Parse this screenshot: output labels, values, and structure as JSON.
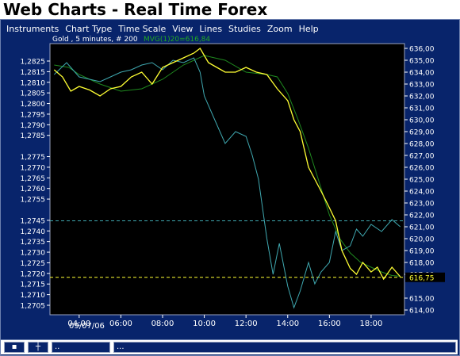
{
  "app": {
    "title": "Web Charts - Real Time Forex"
  },
  "menu": {
    "items": [
      "Instruments",
      "Chart Type",
      "Time Scale",
      "View",
      "Lines",
      "Studies",
      "Zoom",
      "Help"
    ]
  },
  "legend": {
    "instrument_text": "Gold , 5 minutes, # 200",
    "mvg_text": "MVG(1)20=616,84"
  },
  "statusbar": {
    "field1": "..",
    "field2": "..."
  },
  "chart_data": {
    "type": "line",
    "x_tick_labels": [
      "04:00",
      "06:00",
      "08:00",
      "10:00",
      "12:00",
      "14:00",
      "16:00",
      "18:00"
    ],
    "x_date_label": "09/07/06",
    "left_axis_ticks": [
      "1,2825",
      "1,2815",
      "1,2810",
      "1,2805",
      "1,2800",
      "1,2795",
      "1,2790",
      "1,2785",
      "1,2775",
      "1,2770",
      "1,2765",
      "1,2760",
      "1,2755",
      "1,2745",
      "1,2740",
      "1,2735",
      "1,2730",
      "1,2725",
      "1,2720",
      "1,2715",
      "1,2710",
      "1,2705"
    ],
    "right_axis_ticks": [
      "636,00",
      "635,00",
      "634,00",
      "633,00",
      "632,00",
      "631,00",
      "630,00",
      "629,00",
      "628,00",
      "627,00",
      "626,00",
      "625,00",
      "624,00",
      "623,00",
      "622,00",
      "621,00",
      "620,00",
      "619,00",
      "618,00",
      "617,00",
      "615,00",
      "614,00"
    ],
    "right_axis_range": [
      613.6,
      636.4
    ],
    "current_price_label": "616,75",
    "current_price": 616.75,
    "reference_line": 621.5,
    "x_range_hours": [
      2.6,
      19.6
    ],
    "series": [
      {
        "name": "Gold",
        "color": "#ffff33",
        "x": [
          2.8,
          3.2,
          3.6,
          4.0,
          4.5,
          5.0,
          5.5,
          6.0,
          6.5,
          7.0,
          7.5,
          8.0,
          8.5,
          9.0,
          9.5,
          9.8,
          10.2,
          10.6,
          11.0,
          11.5,
          12.0,
          12.5,
          13.0,
          13.5,
          14.0,
          14.3,
          14.6,
          15.0,
          15.3,
          15.6,
          16.0,
          16.3,
          16.6,
          17.0,
          17.3,
          17.6,
          18.0,
          18.3,
          18.6,
          19.0,
          19.4
        ],
        "y": [
          634.2,
          633.6,
          632.4,
          632.8,
          632.5,
          632.0,
          632.6,
          632.8,
          633.6,
          634.0,
          633.0,
          634.4,
          634.8,
          635.2,
          635.6,
          636.0,
          634.8,
          634.4,
          634.0,
          634.0,
          634.4,
          634.0,
          633.8,
          632.6,
          631.6,
          630.0,
          629.0,
          626.0,
          625.0,
          624.0,
          622.6,
          621.5,
          619.0,
          617.5,
          617.0,
          618.0,
          617.2,
          617.6,
          616.6,
          617.6,
          616.8
        ]
      },
      {
        "name": "",
        "color": "#3fa8b0",
        "x": [
          2.8,
          3.4,
          4.0,
          4.5,
          5.0,
          5.5,
          6.0,
          6.5,
          7.0,
          7.5,
          8.0,
          8.5,
          9.0,
          9.5,
          9.8,
          10.0,
          10.5,
          11.0,
          11.5,
          12.0,
          12.3,
          12.6,
          13.0,
          13.3,
          13.6,
          14.0,
          14.3,
          14.6,
          15.0,
          15.3,
          15.6,
          16.0,
          16.3,
          16.6,
          17.0,
          17.3,
          17.6,
          18.0,
          18.5,
          19.0,
          19.4
        ],
        "y": [
          633.8,
          634.8,
          633.6,
          633.4,
          633.2,
          633.6,
          634.0,
          634.2,
          634.6,
          634.8,
          634.2,
          635.0,
          634.8,
          635.2,
          634.0,
          632.0,
          630.0,
          628.0,
          629.0,
          628.6,
          627.0,
          625.0,
          620.0,
          617.0,
          619.6,
          616.0,
          614.2,
          615.6,
          618.0,
          616.2,
          617.2,
          618.0,
          620.6,
          619.0,
          619.4,
          620.8,
          620.2,
          621.2,
          620.6,
          621.6,
          621.0
        ]
      },
      {
        "name": "MVG(1)20",
        "color": "#1f8a1f",
        "x": [
          2.8,
          3.5,
          4.0,
          5.0,
          6.0,
          7.0,
          8.0,
          9.0,
          10.0,
          11.0,
          12.0,
          13.0,
          13.5,
          14.0,
          14.5,
          15.0,
          15.5,
          16.0,
          16.5,
          17.0,
          17.5,
          18.0,
          18.5,
          19.0,
          19.4
        ],
        "y": [
          634.6,
          634.4,
          633.8,
          633.0,
          632.4,
          632.6,
          633.4,
          634.6,
          635.4,
          635.0,
          634.0,
          633.8,
          633.6,
          632.2,
          630.0,
          627.6,
          624.8,
          622.0,
          620.0,
          618.8,
          618.0,
          617.6,
          617.2,
          616.9,
          616.84
        ]
      }
    ]
  }
}
